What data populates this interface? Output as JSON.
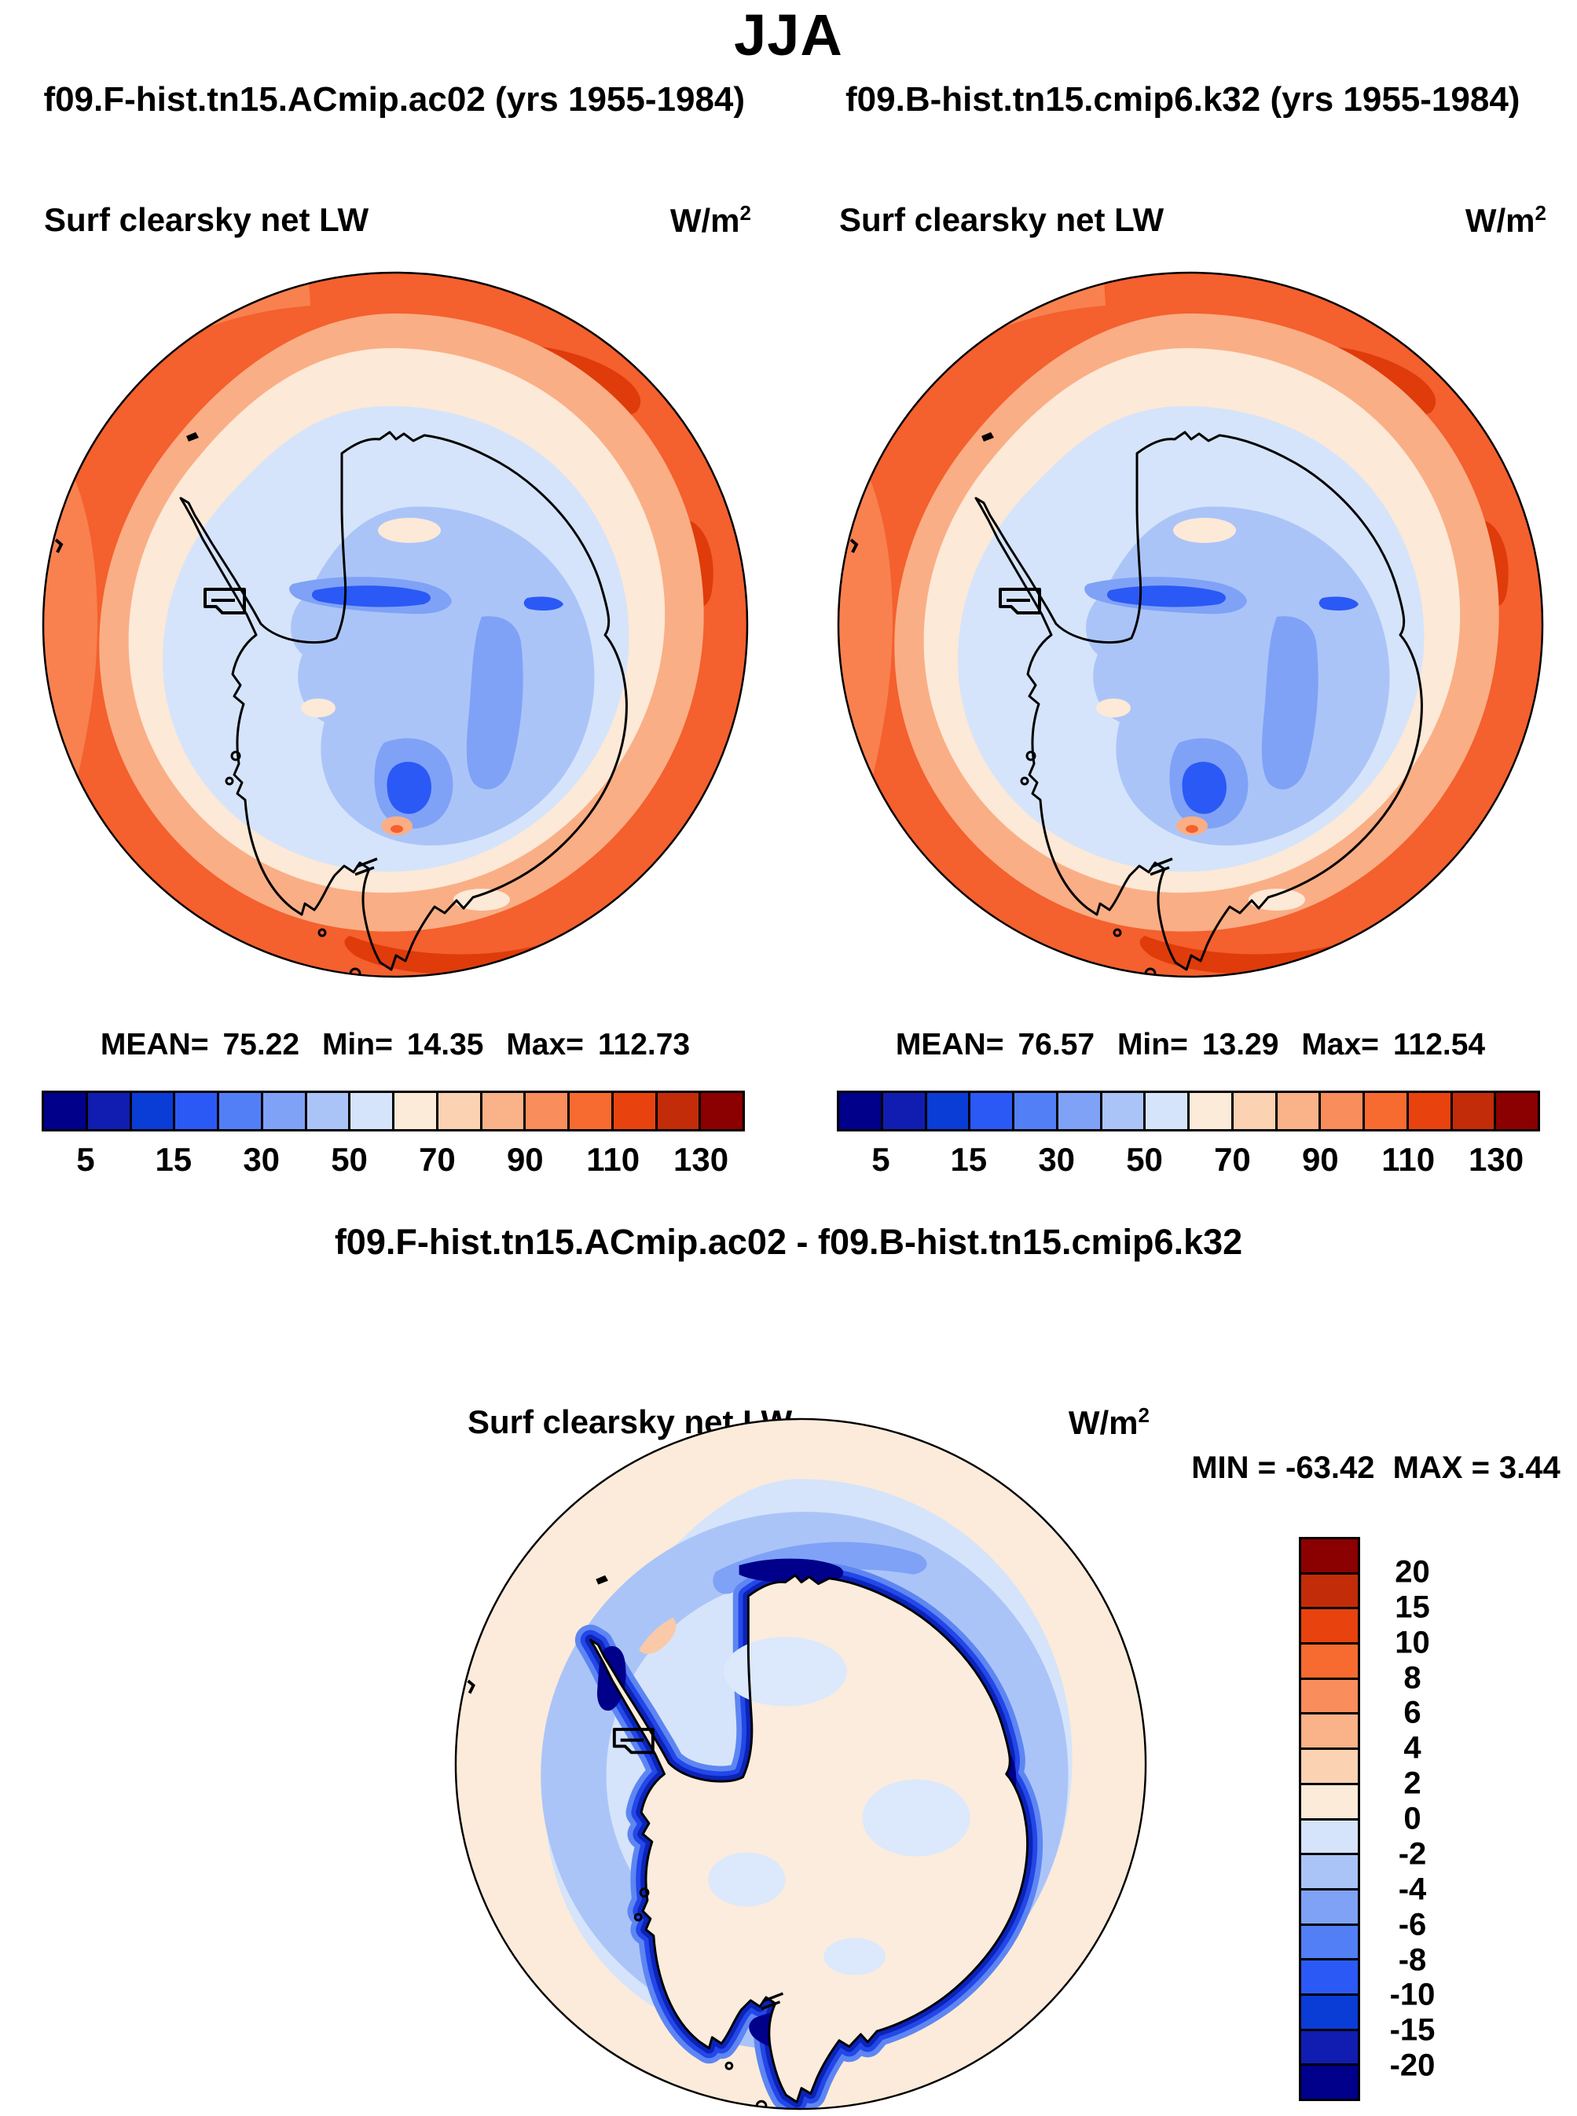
{
  "title": "JJA",
  "palette": {
    "comment": "16-class blue-red palette used by all colorbars, blue to red",
    "colors": [
      "#00008B",
      "#101DB0",
      "#0A3CD6",
      "#2B59F5",
      "#537FF6",
      "#7FA2F7",
      "#ABC4F8",
      "#D5E4FA",
      "#FDEBD9",
      "#FBD2B2",
      "#FAB288",
      "#F98D5C",
      "#F76B31",
      "#E8430E",
      "#C22C08",
      "#8B0000"
    ]
  },
  "panels": {
    "left": {
      "subtitle": "f09.F-hist.tn15.ACmip.ac02 (yrs 1955-1984)",
      "var_label": "Surf clearsky net LW",
      "units_base": "W/m",
      "units_exp": "2",
      "stats": {
        "mean_label": "MEAN=",
        "mean": "75.22",
        "min_label": "Min=",
        "min": "14.35",
        "max_label": "Max=",
        "max": "112.73"
      },
      "ticks": [
        "5",
        "15",
        "30",
        "50",
        "70",
        "90",
        "110",
        "130"
      ]
    },
    "right": {
      "subtitle": "f09.B-hist.tn15.cmip6.k32 (yrs 1955-1984)",
      "var_label": "Surf clearsky net LW",
      "units_base": "W/m",
      "units_exp": "2",
      "stats": {
        "mean_label": "MEAN=",
        "mean": "76.57",
        "min_label": "Min=",
        "min": "13.29",
        "max_label": "Max=",
        "max": "112.54"
      },
      "ticks": [
        "5",
        "15",
        "30",
        "50",
        "70",
        "90",
        "110",
        "130"
      ]
    }
  },
  "diff": {
    "title": "f09.F-hist.tn15.ACmip.ac02 - f09.B-hist.tn15.cmip6.k32",
    "var_label": "Surf clearsky net LW",
    "units_base": "W/m",
    "units_exp": "2",
    "min_label": "MIN =",
    "min": "-63.42",
    "max_label": "MAX =",
    "max": "3.44",
    "ticks": [
      "20",
      "15",
      "10",
      "8",
      "6",
      "4",
      "2",
      "0",
      "-2",
      "-4",
      "-6",
      "-8",
      "-10",
      "-15",
      "-20"
    ]
  },
  "chart_data": [
    {
      "type": "heatmap",
      "subtype": "south-polar-stereographic-contour-map",
      "season": "JJA",
      "title": "f09.F-hist.tn15.ACmip.ac02 (yrs 1955-1984)",
      "variable": "Surf clearsky net LW",
      "units": "W/m2",
      "stats": {
        "mean": 75.22,
        "min": 14.35,
        "max": 112.73
      },
      "colorbar_labeled_levels": [
        5,
        15,
        30,
        50,
        70,
        90,
        110,
        130
      ],
      "n_colors": 16,
      "legend_position": "bottom",
      "description": "Orange/red ocean ring (high net LW ~90-130), cream transition ring, pale-to-medium blue over Antarctica (low values ~15-50), black coastline"
    },
    {
      "type": "heatmap",
      "subtype": "south-polar-stereographic-contour-map",
      "season": "JJA",
      "title": "f09.B-hist.tn15.cmip6.k32 (yrs 1955-1984)",
      "variable": "Surf clearsky net LW",
      "units": "W/m2",
      "stats": {
        "mean": 76.57,
        "min": 13.29,
        "max": 112.54
      },
      "colorbar_labeled_levels": [
        5,
        15,
        30,
        50,
        70,
        90,
        110,
        130
      ],
      "n_colors": 16,
      "legend_position": "bottom",
      "description": "Same pattern as first run"
    },
    {
      "type": "heatmap",
      "subtype": "south-polar-stereographic-contour-map-difference",
      "season": "JJA",
      "title": "f09.F-hist.tn15.ACmip.ac02 - f09.B-hist.tn15.cmip6.k32",
      "variable": "Surf clearsky net LW",
      "units": "W/m2",
      "stats": {
        "min": -63.42,
        "max": 3.44
      },
      "colorbar_labeled_levels": [
        20,
        15,
        10,
        8,
        6,
        4,
        2,
        0,
        -2,
        -4,
        -6,
        -8,
        -10,
        -15,
        -20
      ],
      "n_colors": 16,
      "legend_position": "right",
      "description": "Cream background (0 to 2), light/medium blue annulus offshore (-2 to -8), dark blue ring hugging the coastline (-10 to below -20), near-zero over continent interior"
    }
  ]
}
